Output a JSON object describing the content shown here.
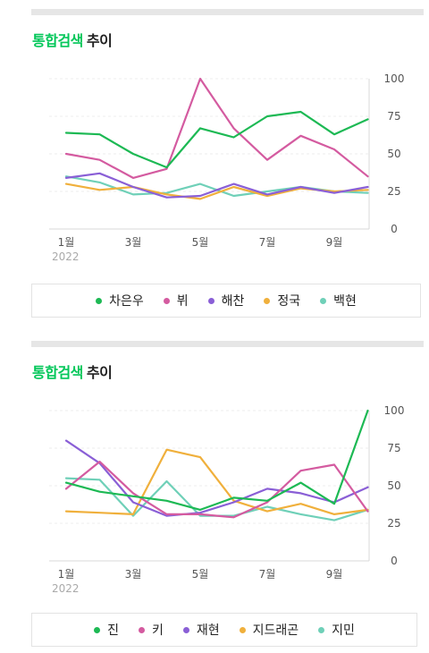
{
  "panels": [
    {
      "title_accent": "통합검색",
      "title_rest": "추이",
      "chart_data": {
        "type": "line",
        "x": [
          "1월",
          "2월",
          "3월",
          "4월",
          "5월",
          "6월",
          "7월",
          "8월",
          "9월",
          "10월"
        ],
        "x_tick_labels": [
          "1월",
          "3월",
          "5월",
          "7월",
          "9월"
        ],
        "x_year_label": "2022",
        "ylim": [
          0,
          100
        ],
        "y_ticks": [
          0,
          25,
          50,
          75,
          100
        ],
        "grid": "horizontal-dashed",
        "legend_position": "bottom",
        "series": [
          {
            "name": "차은우",
            "color": "#1db954",
            "values": [
              64,
              63,
              50,
              41,
              67,
              61,
              75,
              78,
              63,
              73
            ]
          },
          {
            "name": "뷔",
            "color": "#d45ba0",
            "values": [
              50,
              46,
              34,
              40,
              100,
              67,
              46,
              62,
              53,
              35
            ]
          },
          {
            "name": "해찬",
            "color": "#8a5fd6",
            "values": [
              34,
              37,
              28,
              21,
              22,
              30,
              23,
              28,
              24,
              28
            ]
          },
          {
            "name": "정국",
            "color": "#f0b03c",
            "values": [
              30,
              26,
              28,
              23,
              20,
              28,
              22,
              27,
              25,
              26
            ]
          },
          {
            "name": "백현",
            "color": "#6fd0b8",
            "values": [
              35,
              31,
              23,
              24,
              30,
              22,
              25,
              28,
              25,
              24
            ]
          }
        ]
      }
    },
    {
      "title_accent": "통합검색",
      "title_rest": "추이",
      "chart_data": {
        "type": "line",
        "x": [
          "1월",
          "2월",
          "3월",
          "4월",
          "5월",
          "6월",
          "7월",
          "8월",
          "9월",
          "10월"
        ],
        "x_tick_labels": [
          "1월",
          "3월",
          "5월",
          "7월",
          "9월"
        ],
        "x_year_label": "2022",
        "ylim": [
          0,
          100
        ],
        "y_ticks": [
          0,
          25,
          50,
          75,
          100
        ],
        "grid": "horizontal-dashed",
        "legend_position": "bottom",
        "series": [
          {
            "name": "진",
            "color": "#1db954",
            "values": [
              52,
              46,
              43,
              40,
              34,
              42,
              40,
              52,
              38,
              100
            ]
          },
          {
            "name": "키",
            "color": "#d45ba0",
            "values": [
              48,
              66,
              45,
              31,
              31,
              29,
              39,
              60,
              64,
              33
            ]
          },
          {
            "name": "재현",
            "color": "#8a5fd6",
            "values": [
              80,
              65,
              39,
              30,
              32,
              39,
              48,
              45,
              39,
              49
            ]
          },
          {
            "name": "지드래곤",
            "color": "#f0b03c",
            "values": [
              33,
              32,
              31,
              74,
              69,
              40,
              33,
              38,
              31,
              34
            ]
          },
          {
            "name": "지민",
            "color": "#6fd0b8",
            "values": [
              55,
              54,
              30,
              53,
              30,
              30,
              36,
              31,
              27,
              34
            ]
          }
        ]
      }
    }
  ]
}
